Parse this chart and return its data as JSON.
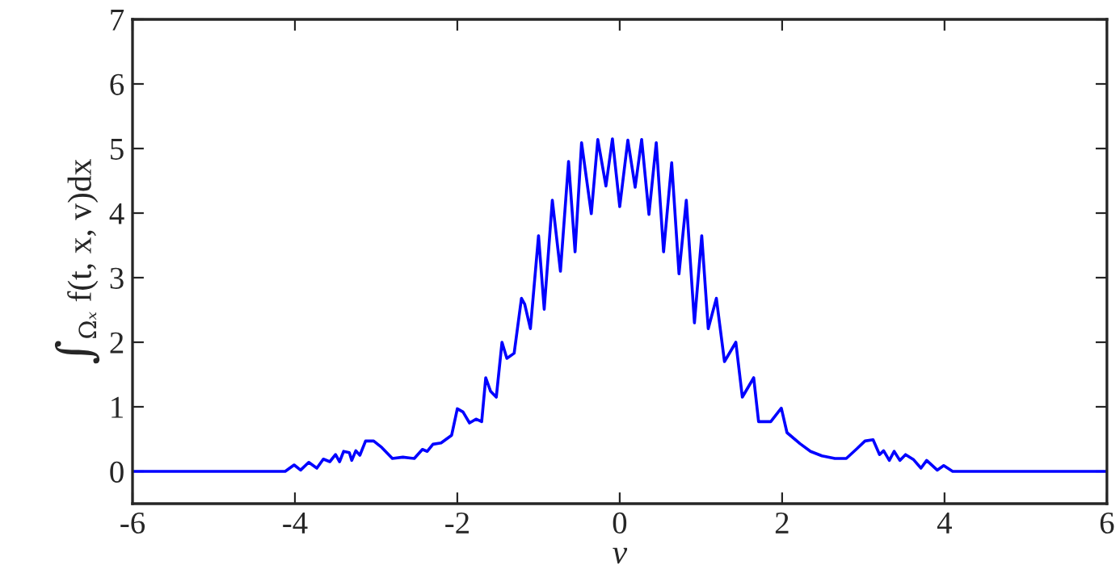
{
  "chart_data": {
    "type": "line",
    "xlabel": "v",
    "ylabel": "∫$_{Ωₓ}$ f(t, x, v)dx",
    "x": [
      -6,
      -4.23,
      -4.12,
      -4.01,
      -3.93,
      -3.83,
      -3.73,
      -3.65,
      -3.57,
      -3.5,
      -3.45,
      -3.4,
      -3.33,
      -3.3,
      -3.25,
      -3.2,
      -3.13,
      -3.03,
      -2.93,
      -2.8,
      -2.67,
      -2.53,
      -2.43,
      -2.37,
      -2.3,
      -2.2,
      -2.07,
      -2.0,
      -1.93,
      -1.85,
      -1.77,
      -1.7,
      -1.65,
      -1.59,
      -1.52,
      -1.45,
      -1.39,
      -1.3,
      -1.21,
      -1.17,
      -1.1,
      -1.0,
      -0.93,
      -0.83,
      -0.73,
      -0.63,
      -0.55,
      -0.47,
      -0.35,
      -0.27,
      -0.17,
      -0.09,
      0,
      0.1,
      0.19,
      0.27,
      0.36,
      0.45,
      0.54,
      0.64,
      0.73,
      0.82,
      0.92,
      1.01,
      1.09,
      1.19,
      1.29,
      1.43,
      1.51,
      1.65,
      1.71,
      1.86,
      1.99,
      2.06,
      2.22,
      2.35,
      2.49,
      2.65,
      2.79,
      2.92,
      3.02,
      3.12,
      3.2,
      3.25,
      3.32,
      3.38,
      3.45,
      3.52,
      3.62,
      3.71,
      3.78,
      3.91,
      3.99,
      4.1,
      4.25,
      6
    ],
    "series": [
      {
        "color": "#0000ff",
        "values": [
          0,
          0,
          0,
          0.1,
          0.02,
          0.14,
          0.05,
          0.19,
          0.15,
          0.26,
          0.15,
          0.31,
          0.29,
          0.17,
          0.32,
          0.25,
          0.47,
          0.47,
          0.37,
          0.2,
          0.22,
          0.2,
          0.34,
          0.31,
          0.42,
          0.44,
          0.56,
          0.97,
          0.92,
          0.75,
          0.81,
          0.77,
          1.45,
          1.24,
          1.15,
          2.0,
          1.75,
          1.83,
          2.68,
          2.59,
          2.21,
          3.65,
          2.51,
          4.2,
          3.1,
          4.8,
          3.4,
          5.09,
          3.99,
          5.14,
          4.42,
          5.15,
          4.1,
          5.13,
          4.4,
          5.14,
          3.98,
          5.09,
          3.4,
          4.78,
          3.06,
          4.2,
          2.3,
          3.65,
          2.21,
          2.68,
          1.7,
          2.0,
          1.15,
          1.45,
          0.77,
          0.77,
          0.98,
          0.6,
          0.43,
          0.31,
          0.24,
          0.2,
          0.2,
          0.35,
          0.47,
          0.49,
          0.26,
          0.32,
          0.17,
          0.31,
          0.17,
          0.26,
          0.18,
          0.05,
          0.17,
          0.02,
          0.09,
          0,
          0,
          0
        ]
      }
    ],
    "xlim": [
      -6,
      6
    ],
    "xticks": [
      -6,
      -4,
      -2,
      0,
      2,
      4,
      6
    ],
    "ylim": [
      -0.5,
      7
    ],
    "yticks": [
      0,
      1,
      2,
      3,
      4,
      5,
      6,
      7
    ],
    "grid": false,
    "legend": false,
    "marker": "none",
    "line_style": "solid"
  }
}
